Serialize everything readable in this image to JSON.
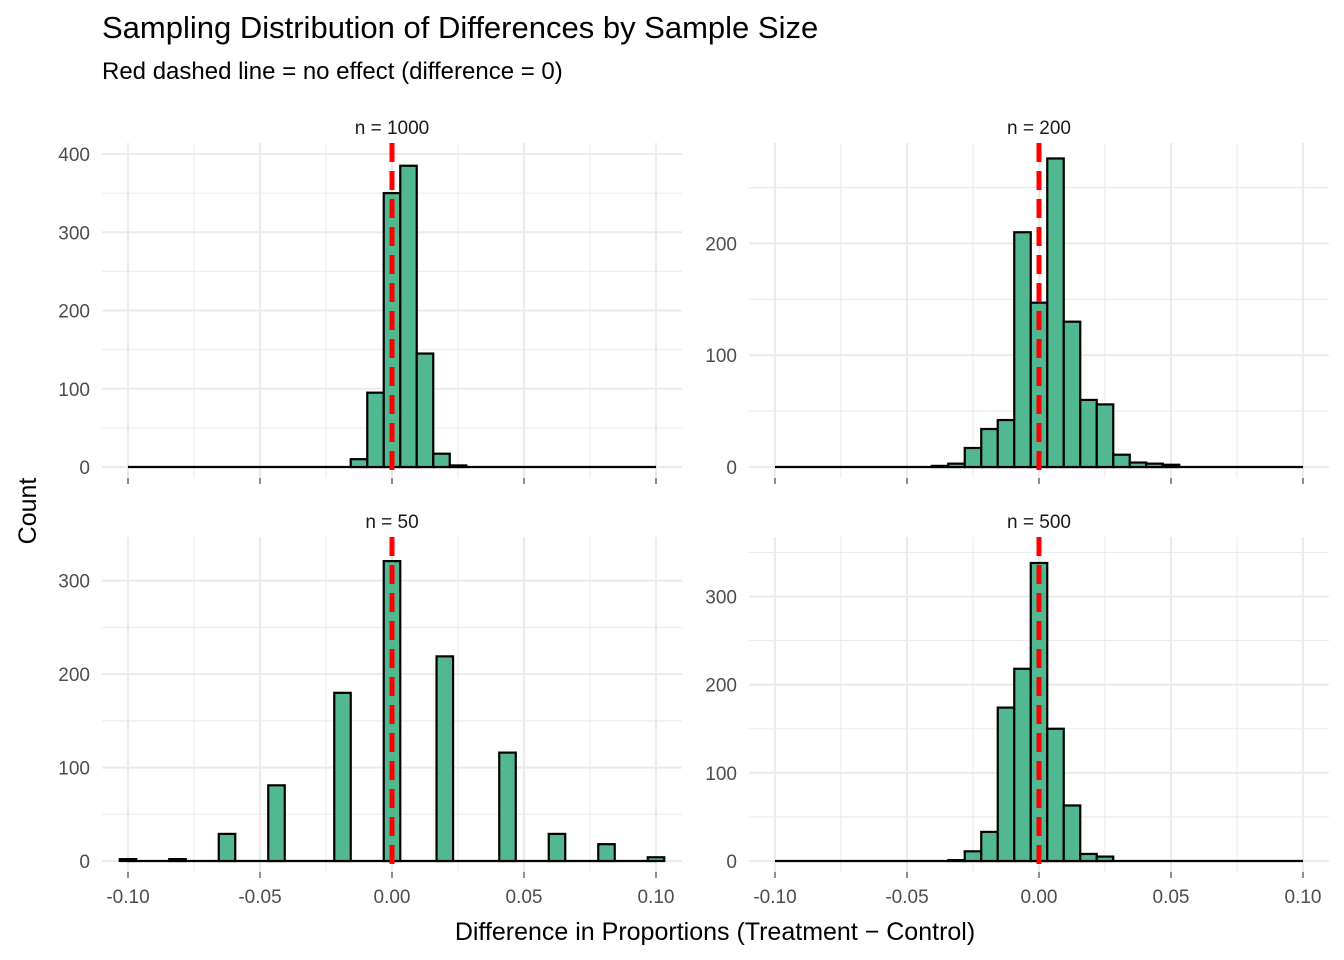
{
  "title": "Sampling Distribution of Differences by Sample Size",
  "subtitle": "Red dashed line = no effect (difference = 0)",
  "colors": {
    "bar_fill": "#52B891",
    "bar_stroke": "#000000",
    "reference_line": "#FF0000",
    "grid": "#EBEBEB",
    "text": "#4D4D4D"
  },
  "chart_data": {
    "type": "bar",
    "xlabel": "Difference in Proportions (Treatment − Control)",
    "ylabel": "Count",
    "xlim": [
      -0.1,
      0.1
    ],
    "x_ticks": [
      -0.1,
      -0.05,
      0.0,
      0.05,
      0.1
    ],
    "x_tick_labels": [
      "-0.10",
      "-0.05",
      "0.00",
      "0.05",
      "0.10"
    ],
    "bin_width": 0.00625,
    "reference_line_x": 0,
    "grid": true,
    "facets": [
      {
        "label": "n = 1000",
        "ylim": [
          0,
          400
        ],
        "y_ticks": [
          0,
          100,
          200,
          300,
          400
        ],
        "bins": [
          {
            "x": -0.0125,
            "count": 10
          },
          {
            "x": -0.00625,
            "count": 95
          },
          {
            "x": 0.0,
            "count": 350
          },
          {
            "x": 0.00625,
            "count": 385
          },
          {
            "x": 0.0125,
            "count": 145
          },
          {
            "x": 0.01875,
            "count": 17
          },
          {
            "x": 0.025,
            "count": 2
          }
        ]
      },
      {
        "label": "n = 200",
        "ylim": [
          0,
          280
        ],
        "y_ticks": [
          0,
          100,
          200
        ],
        "bins": [
          {
            "x": -0.0375,
            "count": 1
          },
          {
            "x": -0.03125,
            "count": 3
          },
          {
            "x": -0.025,
            "count": 17
          },
          {
            "x": -0.01875,
            "count": 34
          },
          {
            "x": -0.0125,
            "count": 42
          },
          {
            "x": -0.00625,
            "count": 210
          },
          {
            "x": 0.0,
            "count": 147
          },
          {
            "x": 0.00625,
            "count": 276
          },
          {
            "x": 0.0125,
            "count": 130
          },
          {
            "x": 0.01875,
            "count": 60
          },
          {
            "x": 0.025,
            "count": 56
          },
          {
            "x": 0.03125,
            "count": 11
          },
          {
            "x": 0.0375,
            "count": 4
          },
          {
            "x": 0.04375,
            "count": 3
          },
          {
            "x": 0.05,
            "count": 2
          }
        ]
      },
      {
        "label": "n = 50",
        "ylim": [
          0,
          335
        ],
        "y_ticks": [
          0,
          100,
          200,
          300
        ],
        "bins": [
          {
            "x": -0.1,
            "count": 2
          },
          {
            "x": -0.08125,
            "count": 2
          },
          {
            "x": -0.0625,
            "count": 29
          },
          {
            "x": -0.04375,
            "count": 81
          },
          {
            "x": -0.01875,
            "count": 180
          },
          {
            "x": 0.0,
            "count": 321
          },
          {
            "x": 0.02,
            "count": 219
          },
          {
            "x": 0.04375,
            "count": 116
          },
          {
            "x": 0.0625,
            "count": 29
          },
          {
            "x": 0.08125,
            "count": 18
          },
          {
            "x": 0.1,
            "count": 4
          }
        ]
      },
      {
        "label": "n = 500",
        "ylim": [
          0,
          355
        ],
        "y_ticks": [
          0,
          100,
          200,
          300
        ],
        "bins": [
          {
            "x": -0.03125,
            "count": 1
          },
          {
            "x": -0.025,
            "count": 11
          },
          {
            "x": -0.01875,
            "count": 33
          },
          {
            "x": -0.0125,
            "count": 174
          },
          {
            "x": -0.00625,
            "count": 218
          },
          {
            "x": 0.0,
            "count": 338
          },
          {
            "x": 0.00625,
            "count": 150
          },
          {
            "x": 0.0125,
            "count": 63
          },
          {
            "x": 0.01875,
            "count": 8
          },
          {
            "x": 0.025,
            "count": 5
          }
        ]
      }
    ]
  }
}
